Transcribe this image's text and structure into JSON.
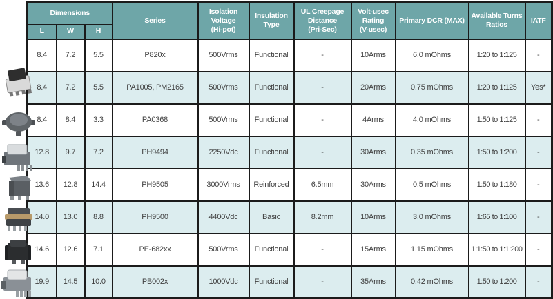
{
  "header": {
    "dimensions": "Dimensions",
    "dims": [
      "L",
      "W",
      "H"
    ],
    "series": "Series",
    "isolation": "Isolation\nVoltage\n(Hi-pot)",
    "insulation": "Insulation\nType",
    "creepage": "UL Creepage\nDistance\n(Pri-Sec)",
    "volt_usec": "Volt-usec\nRating\n(V-usec)",
    "dcr": "Primary DCR (MAX)",
    "turns": "Available Turns\nRatios",
    "iatf": "IATF"
  },
  "rows": [
    {
      "l": "8.4",
      "w": "7.2",
      "h": "5.5",
      "series": "P820x",
      "isolation": "500Vrms",
      "insulation": "Functional",
      "creepage": "-",
      "volt_usec": "10Arms",
      "dcr": "6.0 mOhms",
      "turns": "1:20 to 1:125",
      "iatf": "-"
    },
    {
      "l": "8.4",
      "w": "7.2",
      "h": "5.5",
      "series": "PA1005, PM2165",
      "isolation": "500Vrms",
      "insulation": "Functional",
      "creepage": "-",
      "volt_usec": "20Arms",
      "dcr": "0.75 mOhms",
      "turns": "1:20 to 1:125",
      "iatf": "Yes*"
    },
    {
      "l": "8.4",
      "w": "8.4",
      "h": "3.3",
      "series": "PA0368",
      "isolation": "500Vrms",
      "insulation": "Functional",
      "creepage": "-",
      "volt_usec": "4Arms",
      "dcr": "4.0 mOhms",
      "turns": "1:50 to 1:125",
      "iatf": "-"
    },
    {
      "l": "12.8",
      "w": "9.7",
      "h": "7.2",
      "series": "PH9494",
      "isolation": "2250Vdc",
      "insulation": "Functional",
      "creepage": "-",
      "volt_usec": "30Arms",
      "dcr": "0.35 mOhms",
      "turns": "1:50 to 1:200",
      "iatf": "-"
    },
    {
      "l": "13.6",
      "w": "12.8",
      "h": "14.4",
      "series": "PH9505",
      "isolation": "3000Vrms",
      "insulation": "Reinforced",
      "creepage": "6.5mm",
      "volt_usec": "30Arms",
      "dcr": "0.5 mOhms",
      "turns": "1:50 to 1:180",
      "iatf": "-"
    },
    {
      "l": "14.0",
      "w": "13.0",
      "h": "8.8",
      "series": "PH9500",
      "isolation": "4400Vdc",
      "insulation": "Basic",
      "creepage": "8.2mm",
      "volt_usec": "10Arms",
      "dcr": "3.0 mOhms",
      "turns": "1:65 to 1:100",
      "iatf": "-"
    },
    {
      "l": "14.6",
      "w": "12.6",
      "h": "7.1",
      "series": "PE-682xx",
      "isolation": "500Vrms",
      "insulation": "Functional",
      "creepage": "-",
      "volt_usec": "15Arms",
      "dcr": "1.15 mOhms",
      "turns": "1:1:50 to 1:1:200",
      "iatf": "-"
    },
    {
      "l": "19.9",
      "w": "14.5",
      "h": "10.0",
      "series": "PB002x",
      "isolation": "1000Vdc",
      "insulation": "Functional",
      "creepage": "-",
      "volt_usec": "35Arms",
      "dcr": "0.42 mOhms",
      "turns": "1:50 to 1:200",
      "iatf": "-"
    }
  ],
  "photos": [
    "smd-transformer-photo",
    "toroid-transformer-photo",
    "ep-core-transformer-photo",
    "cube-transformer-photo",
    "layered-transformer-photo",
    "black-transformer-photo",
    "gullwing-transformer-photo"
  ],
  "colors": {
    "header_bg": "#6ea6a8",
    "row_alt_bg": "#dcedef",
    "border": "#1b1b1b",
    "header_text": "#ffffff",
    "cell_text": "#414141"
  }
}
